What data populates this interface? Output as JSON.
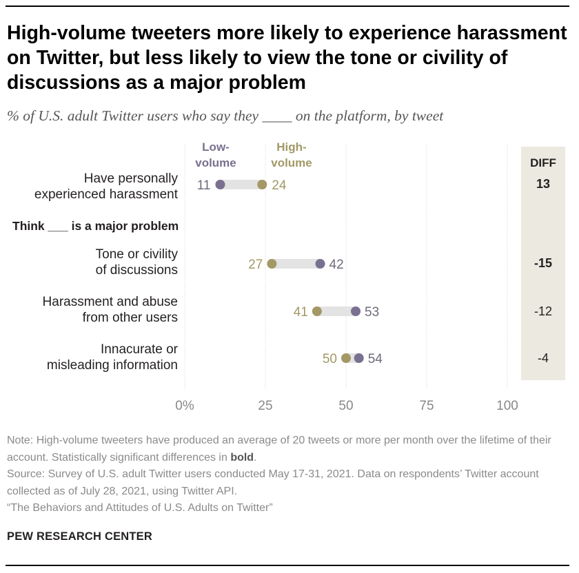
{
  "title": "High-volume tweeters more likely to experience harassment on Twitter, but less likely to view the tone or civility of discussions as a major problem",
  "subtitle": "% of U.S. adult Twitter users who say they ____ on the platform, by tweet",
  "diff_header": "DIFF",
  "section_header": "Think ___ is a major problem",
  "legend": {
    "low": "Low-\nvolume",
    "high": "High-\nvolume"
  },
  "colors": {
    "low": "#7a7090",
    "high": "#a39866",
    "connector": "#e3e3e3",
    "grid": "#d0d0d0",
    "diff_bg": "#ece9e0"
  },
  "chart_data": {
    "type": "dot",
    "series": [
      {
        "name": "Low-volume",
        "values": [
          11,
          42,
          53,
          54
        ]
      },
      {
        "name": "High-volume",
        "values": [
          24,
          27,
          41,
          50
        ]
      }
    ],
    "categories": [
      "Have personally\nexperienced harassment",
      "Tone or civility\nof discussions",
      "Harassment and abuse\nfrom other users",
      "Innacurate or\nmisleading information"
    ],
    "diff": [
      "13",
      "-15",
      "-12",
      "-4"
    ],
    "diff_significant": [
      true,
      true,
      false,
      false
    ],
    "xlim": [
      0,
      100
    ],
    "xticks": [
      0,
      25,
      50,
      75,
      100
    ],
    "xtick_labels": [
      "0%",
      "25",
      "50",
      "75",
      "100"
    ]
  },
  "notes": {
    "note_prefix": "Note: High-volume tweeters have produced an average of 20 tweets or more per month over the lifetime of their account. Statistically significant differences in ",
    "note_bold": "bold",
    "note_suffix": ".",
    "source": "Source: Survey of U.S. adult Twitter users conducted May 17-31, 2021. Data on respondents’ Twitter account collected as of July 28, 2021, using Twitter API.",
    "report": "“The Behaviors and Attitudes of U.S. Adults on Twitter”"
  },
  "brand": "PEW RESEARCH CENTER"
}
